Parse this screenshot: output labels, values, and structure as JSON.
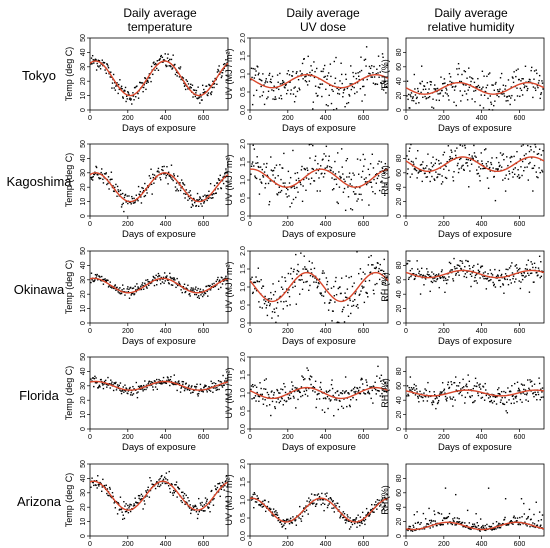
{
  "headers": {
    "temperature": [
      "Daily average",
      "temperature"
    ],
    "uv": [
      "Daily average",
      "UV dose"
    ],
    "humidity": [
      "Daily average",
      "relative humidity"
    ]
  },
  "locations": [
    "Tokyo",
    "Kagoshima",
    "Okinawa",
    "Florida",
    "Arizona"
  ],
  "colors": {
    "points": "#000000",
    "fit": "#d9472b",
    "frame": "#000000"
  },
  "chart_data": [
    {
      "type": "scatter",
      "columns": [
        "temperature",
        "uv",
        "humidity"
      ],
      "xlabel": "Days of exposure",
      "x_ticks": [
        0,
        200,
        400,
        600
      ],
      "xlim": [
        0,
        730
      ],
      "y_axes": {
        "temperature": {
          "ylabel": "Temp (deg C)",
          "ylim": [
            0,
            50
          ],
          "ticks": [
            0,
            10,
            20,
            30,
            40,
            50
          ]
        },
        "uv": {
          "ylabel": "UV (MJ / m²)",
          "ylim": [
            0,
            2.0
          ],
          "ticks": [
            0.0,
            0.5,
            1.0,
            1.5,
            2.0
          ]
        },
        "humidity": {
          "ylabel": "RH (%)",
          "ylim": [
            0,
            100
          ],
          "ticks": [
            0,
            20,
            40,
            60,
            80
          ]
        }
      },
      "fit_curves": {
        "Tokyo": {
          "temperature": {
            "mean": 22,
            "amplitude": 12,
            "peak_day": 30
          },
          "uv": {
            "mean": 0.8,
            "amplitude": 0.18,
            "peak_day": 300
          },
          "humidity": {
            "mean": 30,
            "amplitude": 8,
            "peak_day": 280
          }
        },
        "Kagoshima": {
          "temperature": {
            "mean": 20,
            "amplitude": 10,
            "peak_day": 30
          },
          "uv": {
            "mean": 1.05,
            "amplitude": 0.25,
            "peak_day": 10
          },
          "humidity": {
            "mean": 72,
            "amplitude": 10,
            "peak_day": 300
          }
        },
        "Okinawa": {
          "temperature": {
            "mean": 26,
            "amplitude": 5,
            "peak_day": 20
          },
          "uv": {
            "mean": 1.0,
            "amplitude": 0.4,
            "peak_day": 300
          },
          "humidity": {
            "mean": 68,
            "amplitude": 5,
            "peak_day": 300
          }
        },
        "Florida": {
          "temperature": {
            "mean": 30,
            "amplitude": 3,
            "peak_day": 30
          },
          "uv": {
            "mean": 1.0,
            "amplitude": 0.15,
            "peak_day": 300
          },
          "humidity": {
            "mean": 50,
            "amplitude": 4,
            "peak_day": 320
          }
        },
        "Arizona": {
          "temperature": {
            "mean": 28,
            "amplitude": 10,
            "peak_day": 20
          },
          "uv": {
            "mean": 0.72,
            "amplitude": 0.33,
            "peak_day": 10
          },
          "humidity": {
            "mean": 14,
            "amplitude": 5,
            "peak_day": 220
          }
        }
      },
      "noise": {
        "Tokyo": {
          "temperature": 3,
          "uv": 0.3,
          "humidity": 12
        },
        "Kagoshima": {
          "temperature": 3,
          "uv": 0.35,
          "humidity": 14
        },
        "Okinawa": {
          "temperature": 2,
          "uv": 0.3,
          "humidity": 8
        },
        "Florida": {
          "temperature": 2,
          "uv": 0.2,
          "humidity": 8
        },
        "Arizona": {
          "temperature": 3,
          "uv": 0.1,
          "humidity": 8
        }
      }
    }
  ]
}
